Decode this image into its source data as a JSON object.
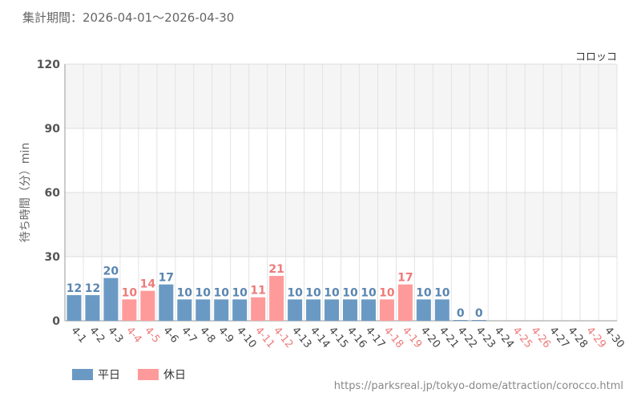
{
  "header": {
    "period_label": "集計期間：2026-04-01～2026-04-30"
  },
  "footer": {
    "source_url": "https://parksreal.jp/tokyo-dome/attraction/corocco.html"
  },
  "colors": {
    "weekday": "#6a9ac4",
    "holiday": "#ff9a9a",
    "weekday_label": "#5a86b0",
    "holiday_label": "#ee7a7a",
    "band": "#f5f5f5"
  },
  "chart_data": {
    "type": "bar",
    "series_label": "コロッコ",
    "ylabel": "待ち時間（分）min",
    "xlabel": "",
    "ylim": [
      0,
      120
    ],
    "yticks": [
      0,
      30,
      60,
      90,
      120
    ],
    "grid": true,
    "legend": [
      {
        "name": "平日",
        "kind": "weekday"
      },
      {
        "name": "休日",
        "kind": "holiday"
      }
    ],
    "legend_position": "bottom-left",
    "categories": [
      "4-1",
      "4-2",
      "4-3",
      "4-4",
      "4-5",
      "4-6",
      "4-7",
      "4-8",
      "4-9",
      "4-10",
      "4-11",
      "4-12",
      "4-13",
      "4-14",
      "4-15",
      "4-16",
      "4-17",
      "4-18",
      "4-19",
      "4-20",
      "4-21",
      "4-22",
      "4-23",
      "4-24",
      "4-25",
      "4-26",
      "4-27",
      "4-28",
      "4-29",
      "4-30"
    ],
    "values": [
      12,
      12,
      20,
      10,
      14,
      17,
      10,
      10,
      10,
      10,
      11,
      21,
      10,
      10,
      10,
      10,
      10,
      10,
      17,
      10,
      10,
      0,
      0,
      null,
      null,
      null,
      null,
      null,
      null,
      null
    ],
    "day_type": [
      "weekday",
      "weekday",
      "weekday",
      "holiday",
      "holiday",
      "weekday",
      "weekday",
      "weekday",
      "weekday",
      "weekday",
      "holiday",
      "holiday",
      "weekday",
      "weekday",
      "weekday",
      "weekday",
      "weekday",
      "holiday",
      "holiday",
      "weekday",
      "weekday",
      "weekday",
      "weekday",
      "weekday",
      "holiday",
      "holiday",
      "weekday",
      "weekday",
      "holiday",
      "weekday"
    ]
  }
}
